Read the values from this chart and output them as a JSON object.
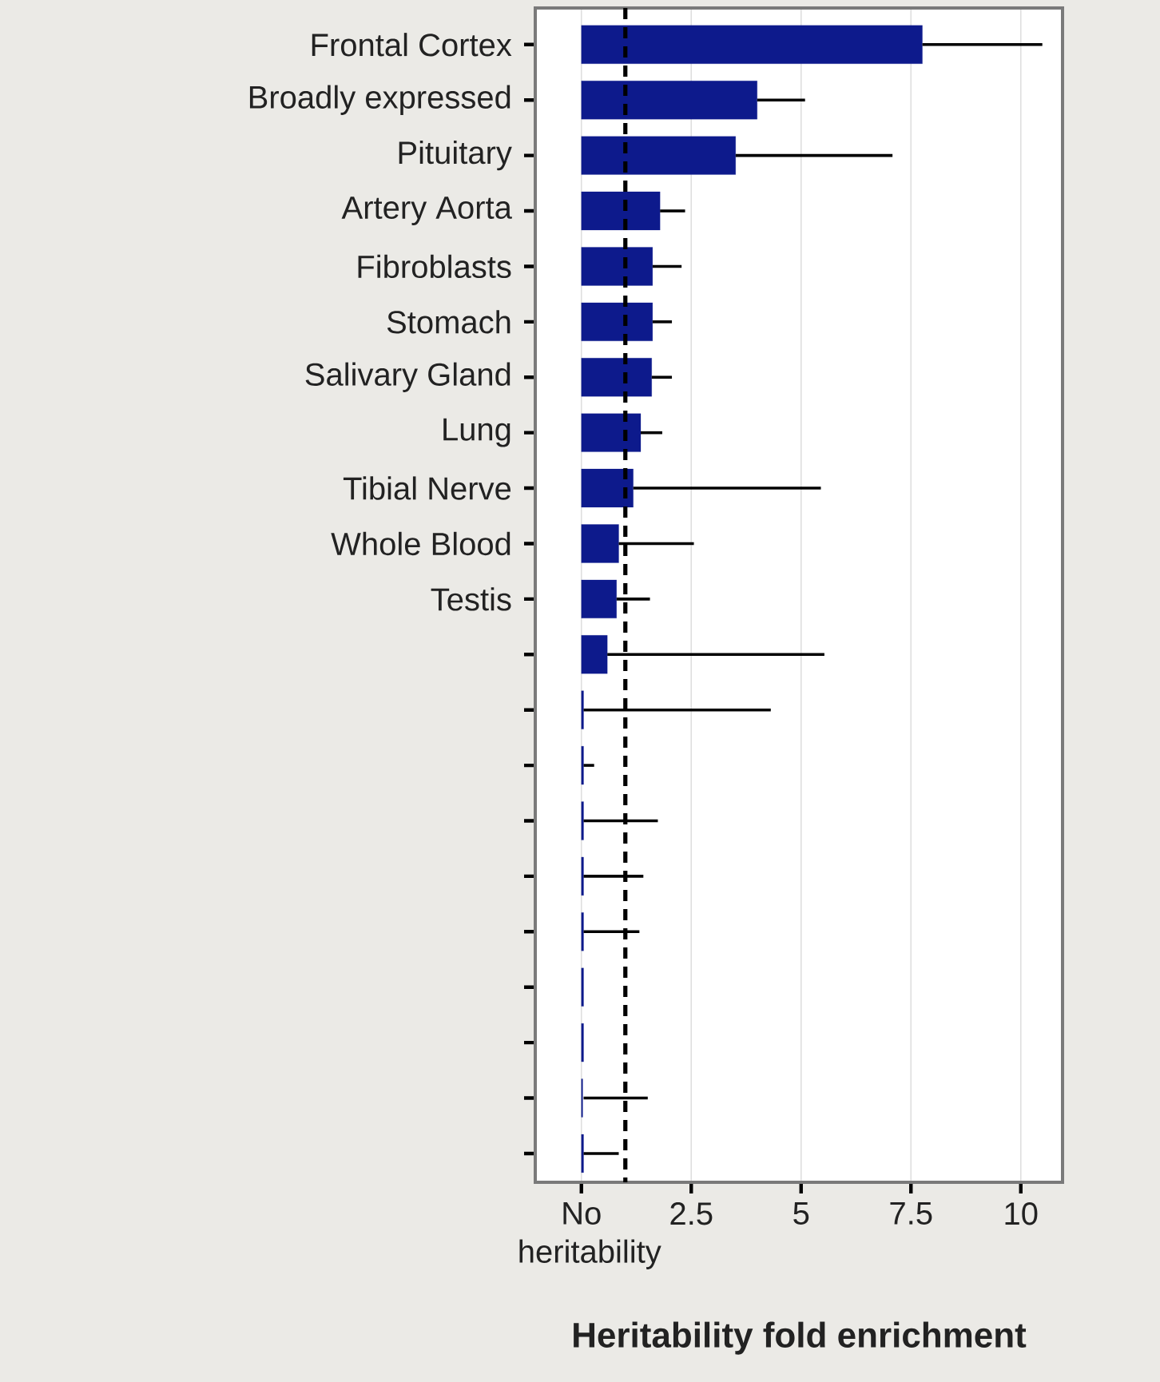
{
  "chart_data": {
    "type": "bar",
    "orientation": "horizontal",
    "xlabel": "Heritability fold enrichment",
    "categories": [
      "Frontal Cortex",
      "Broadly expressed",
      "Pituitary",
      "Artery Aorta",
      "Fibroblasts",
      "Stomach",
      "Salivary Gland",
      "Lung",
      "Tibial Nerve",
      "Whole Blood",
      "Testis",
      null,
      null,
      null,
      null,
      null,
      null,
      null,
      null,
      null,
      null
    ],
    "values": [
      7.76,
      4.0,
      3.51,
      1.79,
      1.62,
      1.62,
      1.6,
      1.35,
      1.18,
      0.85,
      0.8,
      0.59,
      0.05,
      0.05,
      0.05,
      0.05,
      0.05,
      0.05,
      0.05,
      0.03,
      0.05
    ],
    "errors": [
      [
        7.76,
        10.49
      ],
      [
        4.0,
        5.09
      ],
      [
        3.51,
        7.08
      ],
      [
        1.79,
        2.36
      ],
      [
        1.62,
        2.28
      ],
      [
        1.62,
        2.06
      ],
      [
        1.6,
        2.06
      ],
      [
        1.35,
        1.84
      ],
      [
        1.18,
        5.45
      ],
      [
        0.85,
        2.56
      ],
      [
        0.8,
        1.56
      ],
      [
        0.59,
        5.53
      ],
      [
        0.05,
        4.31
      ],
      [
        0.05,
        0.29
      ],
      [
        0.05,
        1.74
      ],
      [
        0.05,
        1.41
      ],
      [
        0.05,
        1.32
      ],
      null,
      null,
      [
        0.05,
        1.51
      ],
      [
        0.05,
        0.85
      ]
    ],
    "color": "#0d1a8c",
    "xlim": [
      -1.05,
      10.95
    ],
    "xticks": [
      {
        "value": 0,
        "label": "No heritability"
      },
      2.5,
      5,
      7.5,
      10
    ],
    "grid": "x",
    "ref_lines": [
      {
        "axis": "x",
        "value": 1,
        "line_style": "dashed",
        "color": "#000000"
      }
    ]
  }
}
